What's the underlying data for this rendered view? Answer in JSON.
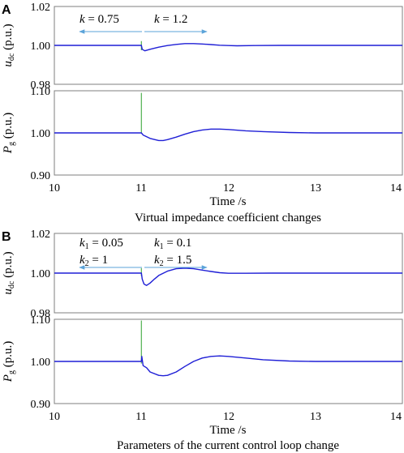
{
  "figure": {
    "panels": [
      {
        "letter": "A",
        "caption": "Virtual impedance coefficient changes",
        "xlabel": "Time /s",
        "xticks": [
          "10",
          "11",
          "12",
          "13",
          "14"
        ],
        "annotations": {
          "left": [
            {
              "var": "k",
              "sub": "",
              "val": " = 0.75"
            }
          ],
          "right": [
            {
              "var": "k",
              "sub": "",
              "val": " = 1.2"
            }
          ]
        }
      },
      {
        "letter": "B",
        "caption": "Parameters of the current control loop change",
        "xlabel": "Time /s",
        "xticks": [
          "10",
          "11",
          "12",
          "13",
          "14"
        ],
        "annotations": {
          "left": [
            {
              "var": "k",
              "sub": "1",
              "val": " = 0.05"
            },
            {
              "var": "k",
              "sub": "2",
              "val": " = 1"
            }
          ],
          "right": [
            {
              "var": "k",
              "sub": "1",
              "val": " = 0.1"
            },
            {
              "var": "k",
              "sub": "2",
              "val": " = 1.5"
            }
          ]
        }
      }
    ]
  },
  "chart_data": [
    {
      "panel": "A",
      "type": "line",
      "ylabel_main": "u",
      "ylabel_sub": "dc",
      "ylabel_unit": " (p.u.)",
      "xlim": [
        10,
        14
      ],
      "ylim": [
        0.98,
        1.02
      ],
      "yticks": [
        "0.98",
        "1.00",
        "1.02"
      ],
      "colors": {
        "main": "#1f1fd6",
        "spike": "#2ca02c",
        "arrow": "#5ba3d9"
      },
      "series": [
        {
          "x": [
            10,
            11.0,
            11.01,
            11.04,
            11.1,
            11.2,
            11.3,
            11.4,
            11.5,
            11.6,
            11.7,
            11.8,
            11.9,
            12.0,
            12.1,
            12.3,
            12.6,
            13.0,
            14.0
          ],
          "y": [
            1.0,
            1.0,
            0.998,
            0.9972,
            0.998,
            0.9991,
            0.9999,
            1.0005,
            1.0009,
            1.0009,
            1.0007,
            1.0004,
            1.0001,
            0.9999,
            0.9998,
            0.9999,
            1.0,
            1.0,
            1.0
          ]
        }
      ],
      "spike": {
        "x": 11.0,
        "y": [
          0.9975,
          1.0022
        ]
      }
    },
    {
      "panel": "A",
      "type": "line",
      "ylabel_main": "P",
      "ylabel_sub": "g",
      "ylabel_unit": " (p.u.)",
      "xlim": [
        10,
        14
      ],
      "ylim": [
        0.9,
        1.1
      ],
      "yticks": [
        "0.90",
        "1.00",
        "1.10"
      ],
      "colors": {
        "main": "#1f1fd6",
        "spike": "#2ca02c"
      },
      "series": [
        {
          "x": [
            10,
            11.0,
            11.02,
            11.1,
            11.2,
            11.25,
            11.3,
            11.4,
            11.5,
            11.6,
            11.7,
            11.8,
            11.9,
            12.0,
            12.2,
            12.4,
            12.7,
            13.0,
            14.0
          ],
          "y": [
            1.0,
            1.0,
            0.995,
            0.987,
            0.982,
            0.982,
            0.984,
            0.99,
            0.997,
            1.003,
            1.007,
            1.009,
            1.009,
            1.008,
            1.005,
            1.003,
            1.001,
            1.0,
            1.0
          ]
        }
      ],
      "spike": {
        "x": 11.0,
        "y": [
          0.999,
          1.095
        ]
      }
    },
    {
      "panel": "B",
      "type": "line",
      "ylabel_main": "u",
      "ylabel_sub": "dc",
      "ylabel_unit": " (p.u.)",
      "xlim": [
        10,
        14
      ],
      "ylim": [
        0.98,
        1.02
      ],
      "yticks": [
        "0.98",
        "1.00",
        "1.02"
      ],
      "colors": {
        "main": "#1f1fd6",
        "spike": "#2ca02c",
        "arrow": "#5ba3d9"
      },
      "series": [
        {
          "x": [
            10,
            11.0,
            11.01,
            11.03,
            11.06,
            11.1,
            11.15,
            11.2,
            11.3,
            11.4,
            11.5,
            11.6,
            11.7,
            11.8,
            11.9,
            12.0,
            12.2,
            12.5,
            13.0,
            14.0
          ],
          "y": [
            1.0,
            1.0,
            0.997,
            0.9945,
            0.9938,
            0.995,
            0.997,
            0.9988,
            1.001,
            1.0022,
            1.0025,
            1.0022,
            1.0015,
            1.0008,
            1.0002,
            0.9999,
            0.9999,
            1.0,
            1.0,
            1.0
          ]
        }
      ],
      "spike": {
        "x": 11.0,
        "y": [
          0.9985,
          1.0025
        ]
      }
    },
    {
      "panel": "B",
      "type": "line",
      "ylabel_main": "P",
      "ylabel_sub": "g",
      "ylabel_unit": " (p.u.)",
      "xlim": [
        10,
        14
      ],
      "ylim": [
        0.9,
        1.1
      ],
      "yticks": [
        "0.90",
        "1.00",
        "1.10"
      ],
      "colors": {
        "main": "#1f1fd6",
        "spike": "#2ca02c"
      },
      "series": [
        {
          "x": [
            10,
            11.0,
            11.005,
            11.02,
            11.06,
            11.1,
            11.2,
            11.25,
            11.3,
            11.4,
            11.5,
            11.6,
            11.7,
            11.8,
            11.9,
            12.0,
            12.2,
            12.4,
            12.7,
            13.0,
            14.0
          ],
          "y": [
            1.0,
            1.0,
            1.012,
            0.99,
            0.985,
            0.975,
            0.967,
            0.966,
            0.967,
            0.975,
            0.988,
            1.0,
            1.008,
            1.012,
            1.013,
            1.012,
            1.008,
            1.004,
            1.001,
            1.0,
            1.0
          ]
        }
      ],
      "spike": {
        "x": 11.0,
        "y": [
          0.995,
          1.097
        ]
      }
    }
  ]
}
